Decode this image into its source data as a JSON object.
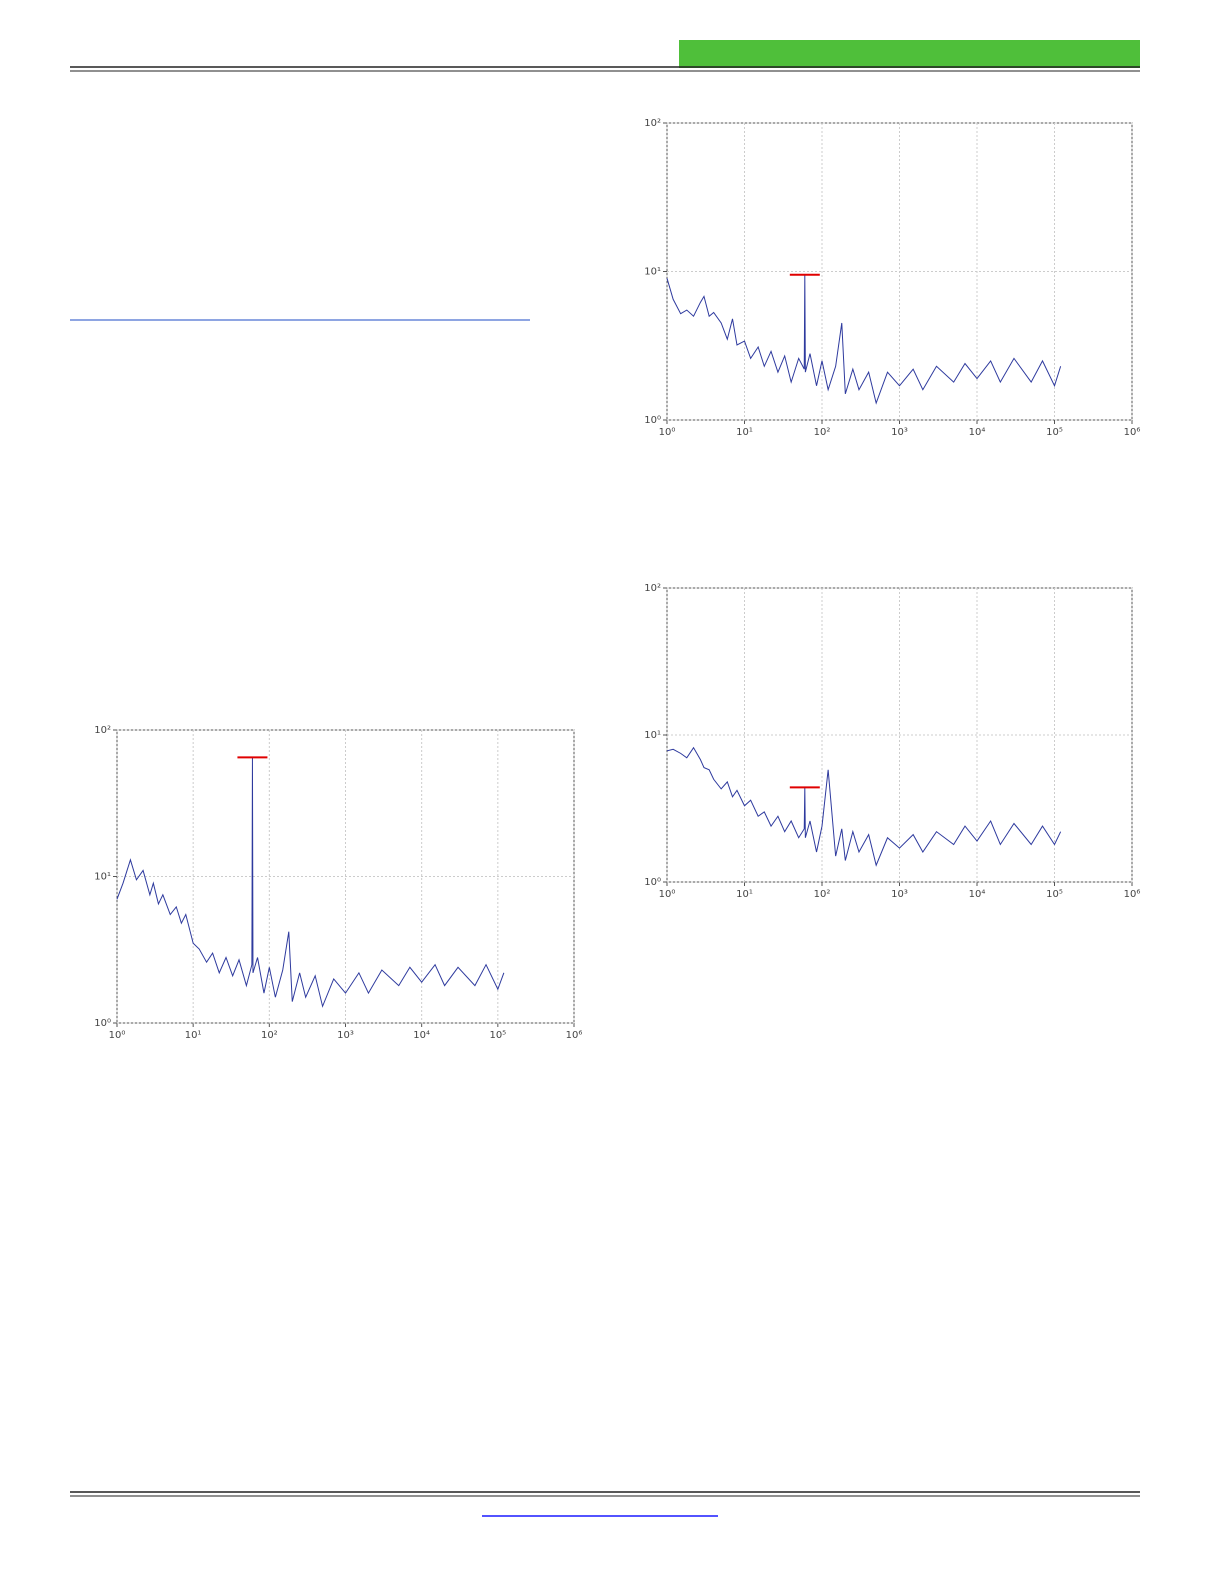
{
  "chart_data": [
    {
      "type": "line",
      "xscale": "log",
      "yscale": "log",
      "grid": true,
      "xlim": [
        1,
        1000000
      ],
      "ylim": [
        1,
        100
      ],
      "xticks": [
        {
          "value": 1,
          "label": "10⁰"
        },
        {
          "value": 10,
          "label": "10¹"
        },
        {
          "value": 100,
          "label": "10²"
        },
        {
          "value": 1000,
          "label": "10³"
        },
        {
          "value": 10000,
          "label": "10⁴"
        },
        {
          "value": 100000,
          "label": "10⁵"
        },
        {
          "value": 1000000,
          "label": "10⁶"
        }
      ],
      "yticks": [
        {
          "value": 1,
          "label": "10⁰"
        },
        {
          "value": 10,
          "label": "10¹"
        },
        {
          "value": 100,
          "label": "10²"
        }
      ],
      "x": [
        1,
        1.2,
        1.5,
        1.8,
        2.2,
        2.7,
        3,
        3.5,
        4,
        5,
        6,
        7,
        8,
        10,
        12,
        15,
        18,
        22,
        27,
        33,
        40,
        50,
        59,
        60,
        61,
        70,
        85,
        100,
        120,
        150,
        180,
        200,
        250,
        300,
        400,
        500,
        700,
        1000,
        1500,
        2000,
        3000,
        5000,
        7000,
        10000,
        15000,
        20000,
        30000,
        50000,
        70000,
        100000,
        120000
      ],
      "series": [
        {
          "color": "#2e3a9e",
          "values": [
            9,
            6.5,
            5.2,
            5.5,
            5,
            6.2,
            6.8,
            5,
            5.3,
            4.5,
            3.5,
            4.8,
            3.2,
            3.4,
            2.6,
            3.1,
            2.3,
            2.9,
            2.1,
            2.7,
            1.8,
            2.6,
            2.2,
            9.5,
            2.1,
            2.8,
            1.7,
            2.5,
            1.6,
            2.3,
            4.5,
            1.5,
            2.2,
            1.6,
            2.1,
            1.3,
            2.1,
            1.7,
            2.2,
            1.6,
            2.3,
            1.8,
            2.4,
            1.9,
            2.5,
            1.8,
            2.6,
            1.8,
            2.5,
            1.7,
            2.3
          ]
        }
      ],
      "markers": [
        {
          "x": 60,
          "y": 9.5,
          "color": "#e00000"
        }
      ]
    },
    {
      "type": "line",
      "xscale": "log",
      "yscale": "log",
      "grid": true,
      "xlim": [
        1,
        1000000
      ],
      "ylim": [
        1,
        100
      ],
      "xticks": [
        {
          "value": 1,
          "label": "10⁰"
        },
        {
          "value": 10,
          "label": "10¹"
        },
        {
          "value": 100,
          "label": "10²"
        },
        {
          "value": 1000,
          "label": "10³"
        },
        {
          "value": 10000,
          "label": "10⁴"
        },
        {
          "value": 100000,
          "label": "10⁵"
        },
        {
          "value": 1000000,
          "label": "10⁶"
        }
      ],
      "yticks": [
        {
          "value": 1,
          "label": "10⁰"
        },
        {
          "value": 10,
          "label": "10¹"
        },
        {
          "value": 100,
          "label": "10²"
        }
      ],
      "x": [
        1,
        1.2,
        1.5,
        1.8,
        2.2,
        2.7,
        3,
        3.5,
        4,
        5,
        6,
        7,
        8,
        10,
        12,
        15,
        18,
        22,
        27,
        33,
        40,
        50,
        59,
        60,
        61,
        70,
        85,
        100,
        120,
        150,
        180,
        200,
        250,
        300,
        400,
        500,
        700,
        1000,
        1500,
        2000,
        3000,
        5000,
        7000,
        10000,
        15000,
        20000,
        30000,
        50000,
        70000,
        100000,
        120000
      ],
      "series": [
        {
          "color": "#2e3a9e",
          "values": [
            7.8,
            8,
            7.5,
            7,
            8.2,
            6.8,
            6,
            5.8,
            5,
            4.3,
            4.8,
            3.8,
            4.2,
            3.3,
            3.6,
            2.8,
            3,
            2.4,
            2.8,
            2.2,
            2.6,
            2,
            2.3,
            4.4,
            2,
            2.6,
            1.6,
            2.4,
            5.8,
            1.5,
            2.3,
            1.4,
            2.2,
            1.6,
            2.1,
            1.3,
            2,
            1.7,
            2.1,
            1.6,
            2.2,
            1.8,
            2.4,
            1.9,
            2.6,
            1.8,
            2.5,
            1.8,
            2.4,
            1.8,
            2.2
          ]
        }
      ],
      "markers": [
        {
          "x": 60,
          "y": 4.4,
          "color": "#e00000"
        }
      ]
    },
    {
      "type": "line",
      "xscale": "log",
      "yscale": "log",
      "grid": true,
      "xlim": [
        1,
        1000000
      ],
      "ylim": [
        1,
        100
      ],
      "xticks": [
        {
          "value": 1,
          "label": "10⁰"
        },
        {
          "value": 10,
          "label": "10¹"
        },
        {
          "value": 100,
          "label": "10²"
        },
        {
          "value": 1000,
          "label": "10³"
        },
        {
          "value": 10000,
          "label": "10⁴"
        },
        {
          "value": 100000,
          "label": "10⁵"
        },
        {
          "value": 1000000,
          "label": "10⁶"
        }
      ],
      "yticks": [
        {
          "value": 1,
          "label": "10⁰"
        },
        {
          "value": 10,
          "label": "10¹"
        },
        {
          "value": 100,
          "label": "10²"
        }
      ],
      "x": [
        1,
        1.2,
        1.5,
        1.8,
        2.2,
        2.7,
        3,
        3.5,
        4,
        5,
        6,
        7,
        8,
        10,
        12,
        15,
        18,
        22,
        27,
        33,
        40,
        50,
        59,
        60,
        61,
        70,
        85,
        100,
        120,
        150,
        180,
        200,
        250,
        300,
        400,
        500,
        700,
        1000,
        1500,
        2000,
        3000,
        5000,
        7000,
        10000,
        15000,
        20000,
        30000,
        50000,
        70000,
        100000,
        120000
      ],
      "series": [
        {
          "color": "#2e3a9e",
          "values": [
            7,
            9,
            13,
            9.5,
            11,
            7.5,
            9,
            6.5,
            7.5,
            5.5,
            6.2,
            4.8,
            5.5,
            3.5,
            3.2,
            2.6,
            3,
            2.2,
            2.8,
            2.1,
            2.7,
            1.8,
            2.5,
            65,
            2.2,
            2.8,
            1.6,
            2.4,
            1.5,
            2.3,
            4.2,
            1.4,
            2.2,
            1.5,
            2.1,
            1.3,
            2,
            1.6,
            2.2,
            1.6,
            2.3,
            1.8,
            2.4,
            1.9,
            2.5,
            1.8,
            2.4,
            1.8,
            2.5,
            1.7,
            2.2
          ]
        }
      ],
      "markers": [
        {
          "x": 60,
          "y": 65,
          "color": "#e00000"
        }
      ]
    }
  ]
}
